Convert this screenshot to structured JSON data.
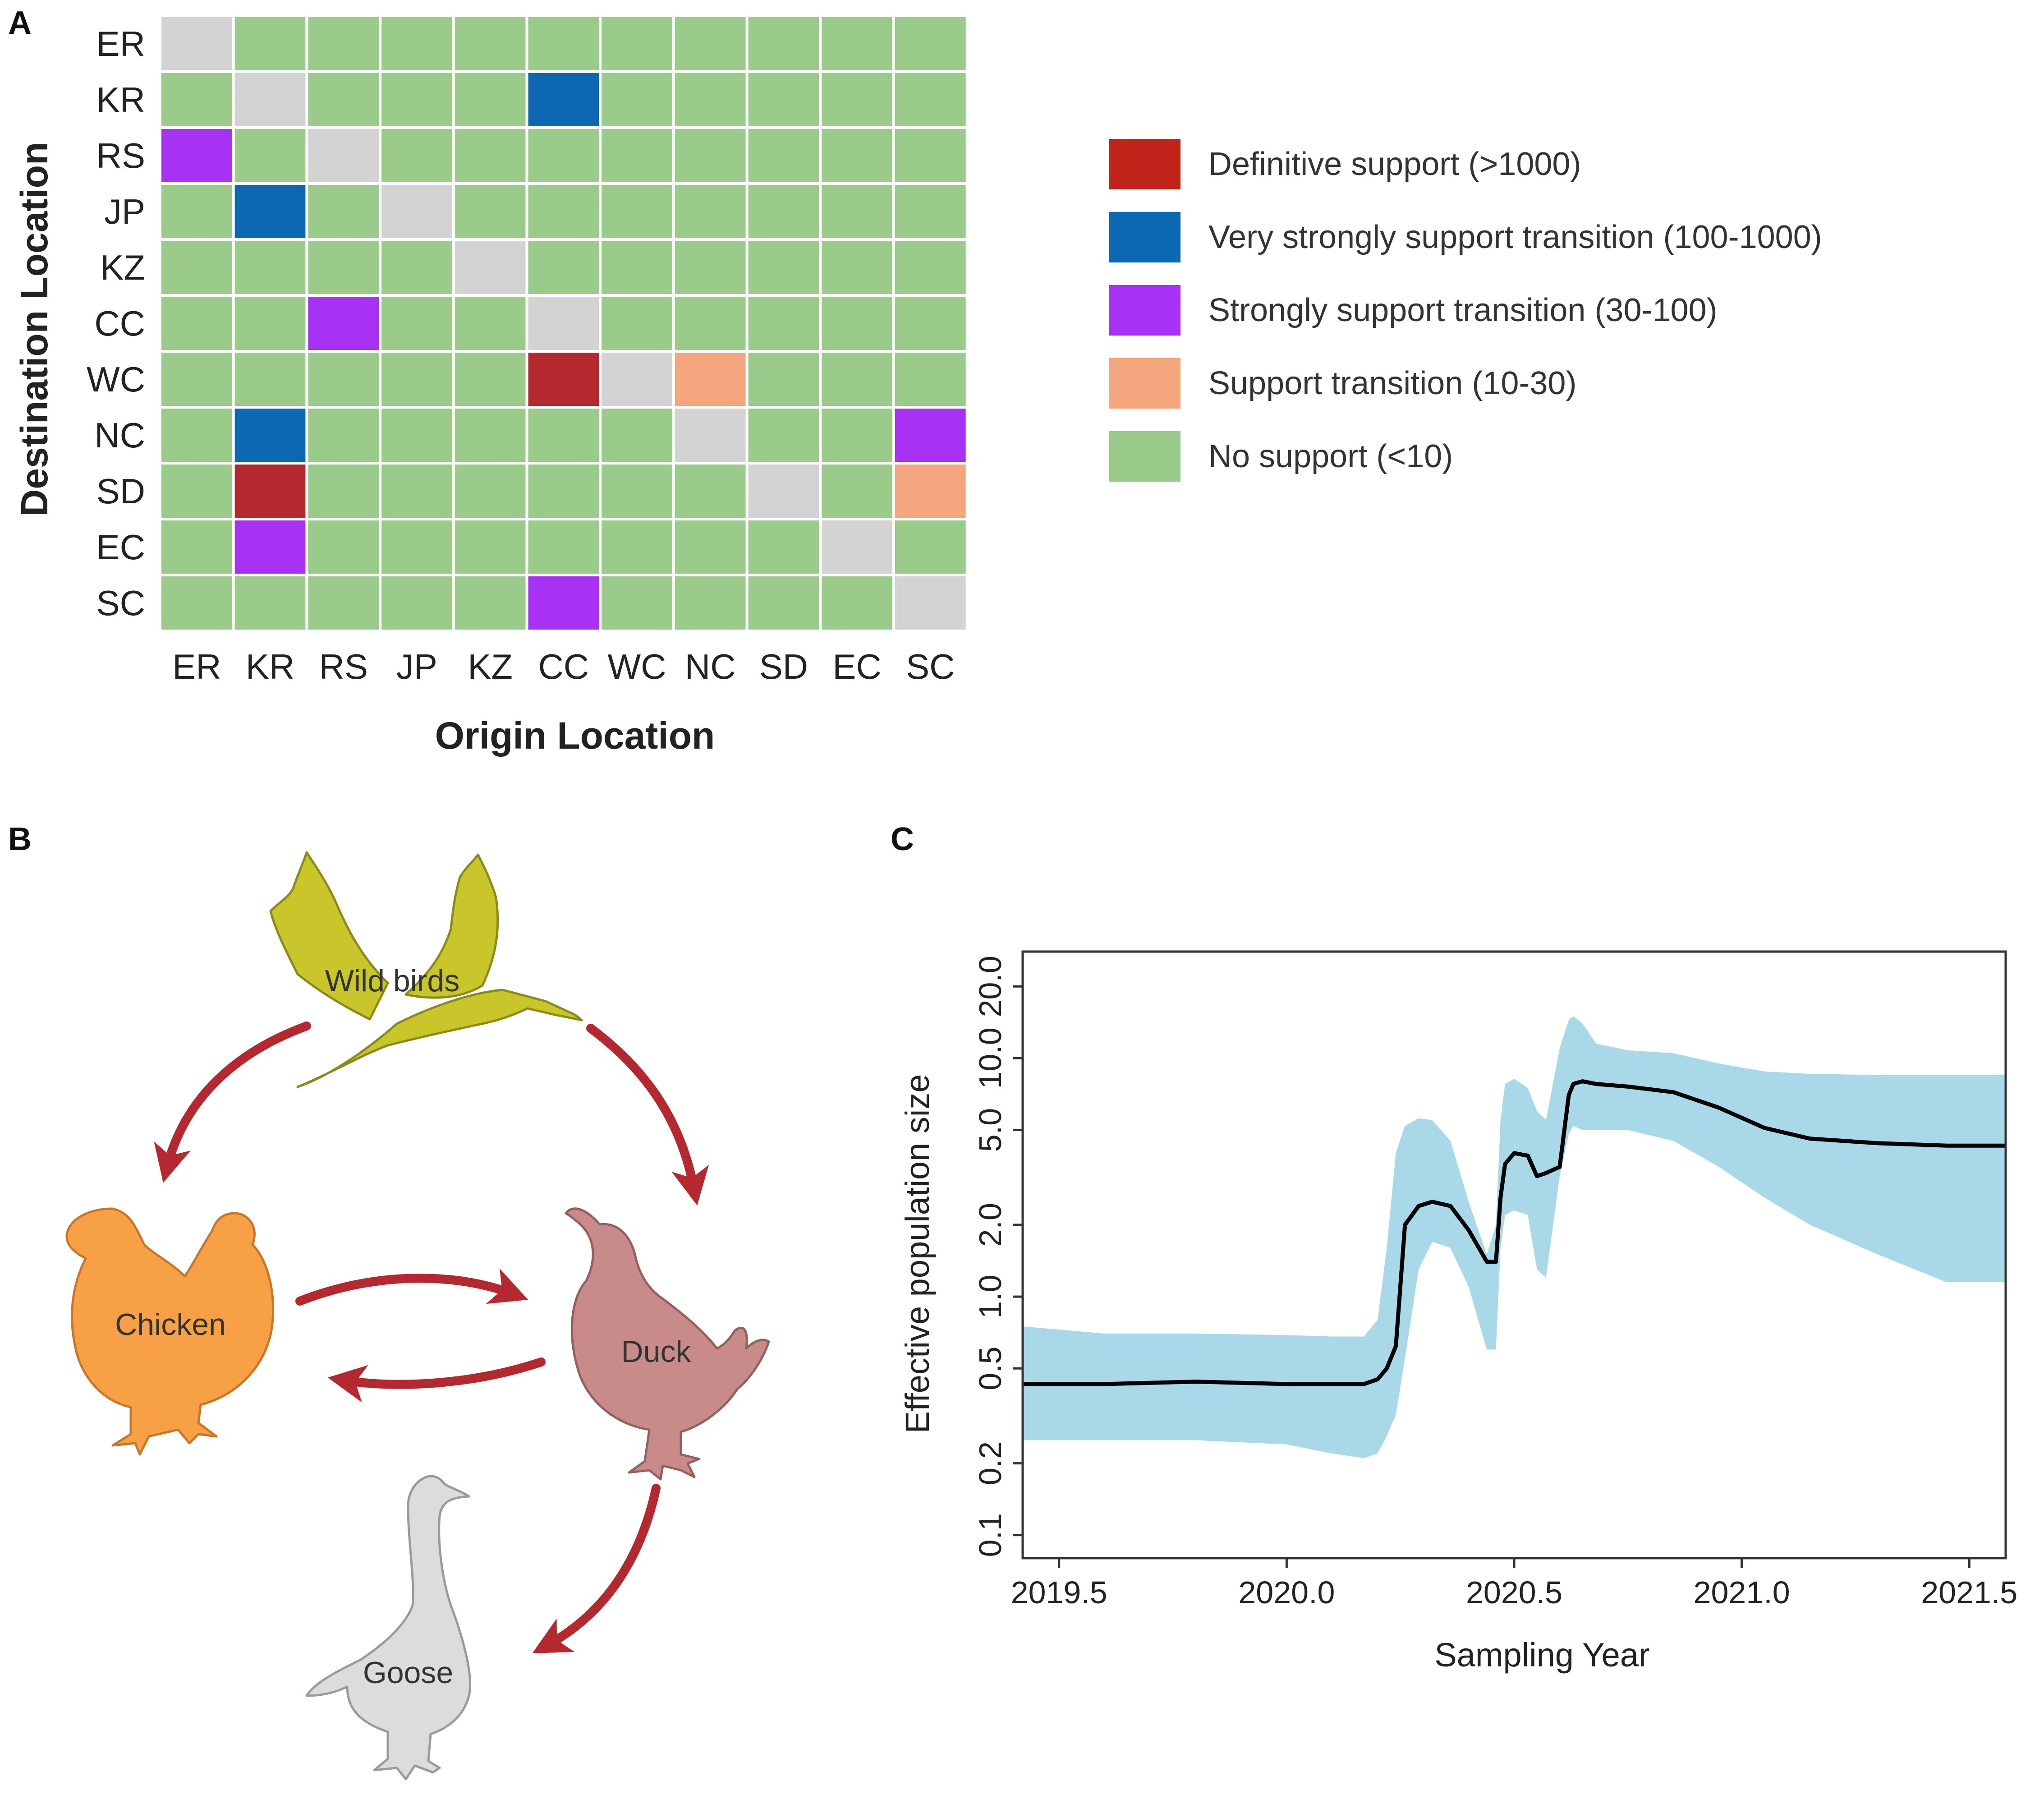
{
  "panels": {
    "a": "A",
    "b": "B",
    "c": "C"
  },
  "chart_data": [
    {
      "type": "heatmap",
      "title": "",
      "xlabel": "Origin Location",
      "ylabel": "Destination Location",
      "x_categories": [
        "ER",
        "KR",
        "RS",
        "JP",
        "KZ",
        "CC",
        "WC",
        "NC",
        "SD",
        "EC",
        "SC"
      ],
      "y_categories": [
        "ER",
        "KR",
        "RS",
        "JP",
        "KZ",
        "CC",
        "WC",
        "NC",
        "SD",
        "EC",
        "SC"
      ],
      "levels": [
        {
          "code": "D",
          "label": "Definitive support (>1000)",
          "color": "#b3292f",
          "legend_color": "#c0231a"
        },
        {
          "code": "V",
          "label": "Very strongly support transition (100-1000)",
          "color": "#0d68b3",
          "legend_color": "#0d68b3"
        },
        {
          "code": "P",
          "label": "Strongly support transition (30-100)",
          "color": "#a832f4",
          "legend_color": "#a832f4"
        },
        {
          "code": "O",
          "label": "Support transition (10-30)",
          "color": "#f4a67f",
          "legend_color": "#f4a67f"
        },
        {
          "code": "N",
          "label": "No support (<10)",
          "color": "#9acb8a",
          "legend_color": "#9acb8a"
        }
      ],
      "diagonal_color": "#d3d3d3",
      "matrix": [
        [
          "-",
          "N",
          "N",
          "N",
          "N",
          "N",
          "N",
          "N",
          "N",
          "N",
          "N"
        ],
        [
          "N",
          "-",
          "N",
          "N",
          "N",
          "V",
          "N",
          "N",
          "N",
          "N",
          "N"
        ],
        [
          "P",
          "N",
          "-",
          "N",
          "N",
          "N",
          "N",
          "N",
          "N",
          "N",
          "N"
        ],
        [
          "N",
          "V",
          "N",
          "-",
          "N",
          "N",
          "N",
          "N",
          "N",
          "N",
          "N"
        ],
        [
          "N",
          "N",
          "N",
          "N",
          "-",
          "N",
          "N",
          "N",
          "N",
          "N",
          "N"
        ],
        [
          "N",
          "N",
          "P",
          "N",
          "N",
          "-",
          "N",
          "N",
          "N",
          "N",
          "N"
        ],
        [
          "N",
          "N",
          "N",
          "N",
          "N",
          "D",
          "-",
          "O",
          "N",
          "N",
          "N"
        ],
        [
          "N",
          "V",
          "N",
          "N",
          "N",
          "N",
          "N",
          "-",
          "N",
          "N",
          "P"
        ],
        [
          "N",
          "D",
          "N",
          "N",
          "N",
          "N",
          "N",
          "N",
          "-",
          "N",
          "O"
        ],
        [
          "N",
          "P",
          "N",
          "N",
          "N",
          "N",
          "N",
          "N",
          "N",
          "-",
          "N"
        ],
        [
          "N",
          "N",
          "N",
          "N",
          "N",
          "P",
          "N",
          "N",
          "N",
          "N",
          "-"
        ]
      ]
    },
    {
      "type": "area",
      "title": "",
      "xlabel": "Sampling Year",
      "ylabel": "Effective population size",
      "y_scale": "log",
      "xlim": [
        2019.42,
        2021.58
      ],
      "ylim": [
        0.08,
        28
      ],
      "x_ticks": [
        2019.5,
        2020.0,
        2020.5,
        2021.0,
        2021.5
      ],
      "x_tick_labels": [
        "2019.5",
        "2020.0",
        "2020.5",
        "2021.0",
        "2021.5"
      ],
      "y_ticks": [
        0.1,
        0.2,
        0.5,
        1.0,
        2.0,
        5.0,
        10.0,
        20.0
      ],
      "y_tick_labels": [
        "0.1",
        "0.2",
        "0.5",
        "1.0",
        "2.0",
        "5.0",
        "10.0",
        "20.0"
      ],
      "line_color": "#000000",
      "band_color": "#a9d8e8",
      "x": [
        2019.42,
        2019.6,
        2019.8,
        2020.0,
        2020.1,
        2020.17,
        2020.2,
        2020.22,
        2020.24,
        2020.26,
        2020.29,
        2020.32,
        2020.36,
        2020.4,
        2020.44,
        2020.46,
        2020.47,
        2020.48,
        2020.5,
        2020.53,
        2020.55,
        2020.57,
        2020.6,
        2020.62,
        2020.63,
        2020.65,
        2020.68,
        2020.75,
        2020.85,
        2020.95,
        2021.05,
        2021.15,
        2021.3,
        2021.45,
        2021.58
      ],
      "median": [
        0.43,
        0.43,
        0.44,
        0.43,
        0.43,
        0.43,
        0.45,
        0.5,
        0.62,
        2.0,
        2.4,
        2.5,
        2.4,
        1.9,
        1.4,
        1.4,
        2.6,
        3.6,
        4.0,
        3.9,
        3.2,
        3.3,
        3.5,
        7.0,
        7.8,
        8.0,
        7.8,
        7.6,
        7.2,
        6.2,
        5.1,
        4.6,
        4.4,
        4.3,
        4.3
      ],
      "lower": [
        0.25,
        0.25,
        0.25,
        0.24,
        0.22,
        0.21,
        0.22,
        0.26,
        0.32,
        0.55,
        1.3,
        1.7,
        1.6,
        1.1,
        0.6,
        0.6,
        1.6,
        2.2,
        2.3,
        2.2,
        1.3,
        1.2,
        3.2,
        4.8,
        5.2,
        5.0,
        5.0,
        5.0,
        4.5,
        3.5,
        2.6,
        2.0,
        1.5,
        1.15,
        1.15
      ],
      "upper": [
        0.75,
        0.7,
        0.7,
        0.69,
        0.68,
        0.68,
        0.8,
        1.6,
        4.0,
        5.2,
        5.6,
        5.5,
        4.5,
        2.5,
        1.5,
        2.0,
        5.5,
        7.8,
        8.2,
        7.5,
        6.0,
        5.5,
        11.0,
        14.5,
        15.0,
        14.0,
        11.5,
        10.8,
        10.5,
        9.5,
        8.8,
        8.6,
        8.5,
        8.5,
        8.5
      ]
    }
  ],
  "diagram": {
    "nodes": {
      "wild_birds": "Wild birds",
      "chicken": "Chicken",
      "duck": "Duck",
      "goose": "Goose"
    },
    "arrow_color": "#b3292f"
  }
}
